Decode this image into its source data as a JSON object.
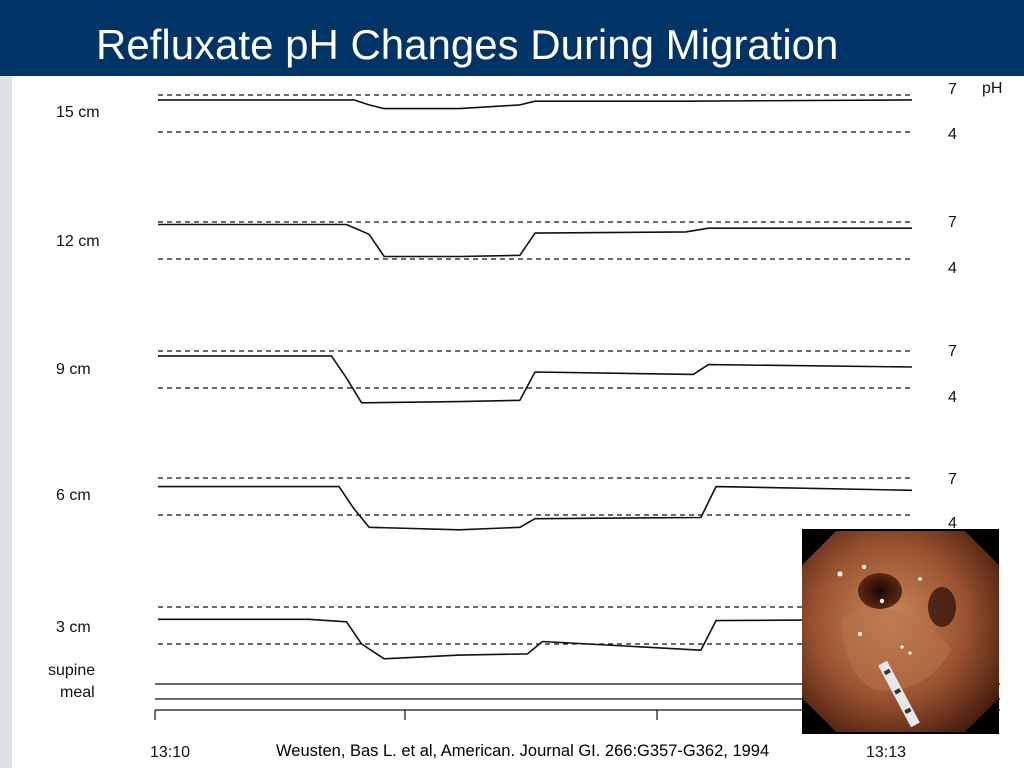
{
  "slide": {
    "title": "Refluxate pH Changes During Migration",
    "citation": "Weusten, Bas L. et al, American. Journal GI. 266:G357-G362, 1994"
  },
  "chart_data": {
    "type": "line",
    "title": "Refluxate pH Changes During Migration",
    "unit_label": "pH",
    "x_ticks": [
      "13:10",
      "13:13"
    ],
    "reference_levels": [
      7,
      4
    ],
    "reference_level_labels": [
      "7",
      "4"
    ],
    "event_labels": [
      "supine",
      "meal"
    ],
    "channels": [
      {
        "label": "15 cm",
        "x": [
          0,
          0.26,
          0.28,
          0.3,
          0.4,
          0.48,
          0.5,
          0.7,
          1.0
        ],
        "ph": [
          6.6,
          6.6,
          6.2,
          5.9,
          5.9,
          6.2,
          6.5,
          6.5,
          6.6
        ]
      },
      {
        "label": "12 cm",
        "x": [
          0,
          0.25,
          0.28,
          0.3,
          0.4,
          0.48,
          0.5,
          0.7,
          0.73,
          1.0
        ],
        "ph": [
          6.8,
          6.8,
          6.0,
          4.2,
          4.2,
          4.3,
          6.1,
          6.2,
          6.5,
          6.5
        ]
      },
      {
        "label": "9 cm",
        "x": [
          0,
          0.23,
          0.25,
          0.27,
          0.4,
          0.48,
          0.5,
          0.71,
          0.73,
          1.0
        ],
        "ph": [
          6.6,
          6.6,
          4.8,
          2.8,
          2.9,
          3.0,
          5.3,
          5.1,
          5.9,
          5.7
        ]
      },
      {
        "label": "6 cm",
        "x": [
          0,
          0.24,
          0.26,
          0.28,
          0.4,
          0.48,
          0.5,
          0.72,
          0.74,
          1.0
        ],
        "ph": [
          6.3,
          6.3,
          4.5,
          3.0,
          2.8,
          3.0,
          3.7,
          3.8,
          6.3,
          6.0
        ]
      },
      {
        "label": "3 cm",
        "x": [
          0,
          0.2,
          0.25,
          0.27,
          0.3,
          0.4,
          0.49,
          0.51,
          0.72,
          0.74,
          1.0
        ],
        "ph": [
          6.0,
          6.0,
          5.8,
          4.0,
          2.8,
          3.1,
          3.2,
          4.2,
          3.5,
          5.9,
          6.0
        ]
      }
    ]
  },
  "photo": {
    "icon": "endoscopic-view-photo"
  }
}
